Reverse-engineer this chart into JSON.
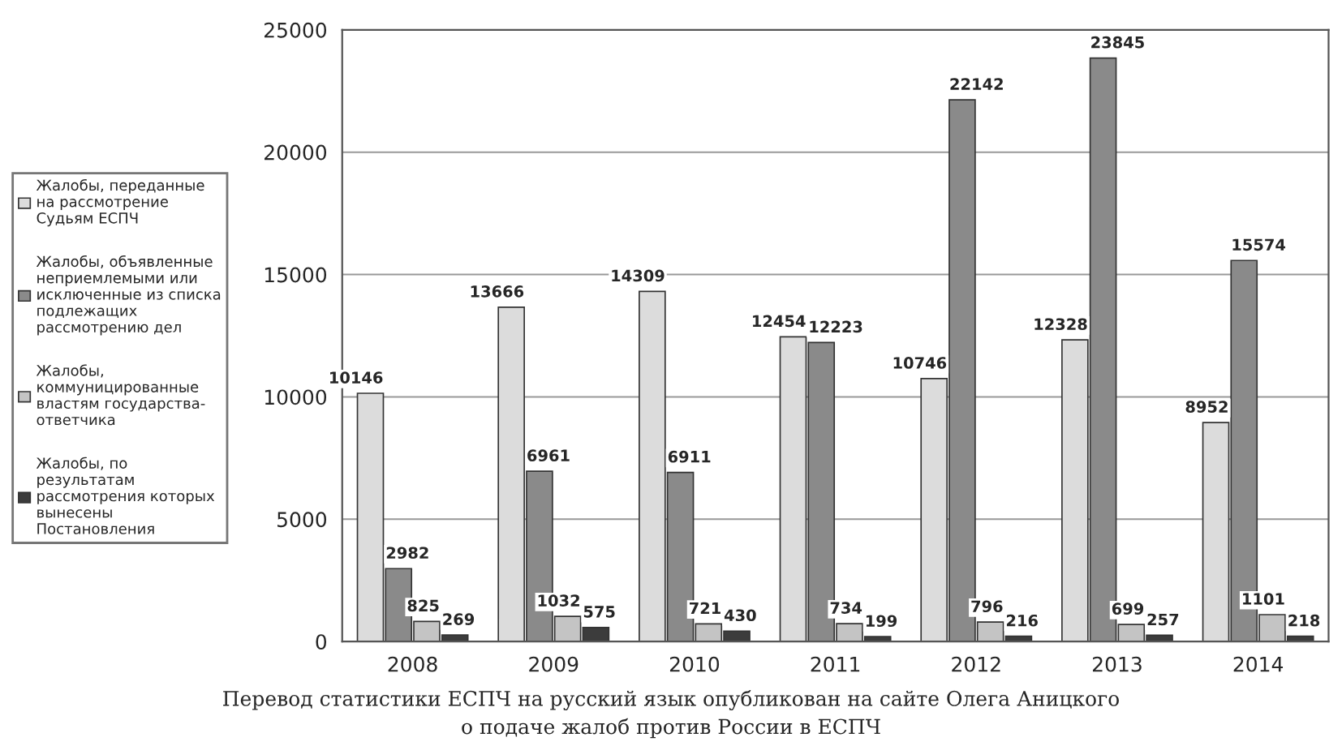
{
  "chart_data": {
    "type": "bar",
    "categories": [
      "2008",
      "2009",
      "2010",
      "2011",
      "2012",
      "2013",
      "2014"
    ],
    "series": [
      {
        "name": "Жалобы, переданные\nна рассмотрение\nСудьям ЕСПЧ",
        "color": "#dcdcdc",
        "values": [
          10146,
          13666,
          14309,
          12454,
          10746,
          12328,
          8952
        ]
      },
      {
        "name": "Жалобы, объявленные\nнеприемлемыми или\nисключенные из списка\nподлежащих\nрассмотрению дел",
        "color": "#8a8a8a",
        "values": [
          2982,
          6961,
          6911,
          12223,
          22142,
          23845,
          15574
        ]
      },
      {
        "name": "Жалобы,\nкоммуницированные\nвластям государства-\nответчика",
        "color": "#c4c4c4",
        "values": [
          825,
          1032,
          721,
          734,
          796,
          699,
          1101
        ]
      },
      {
        "name": "Жалобы, по\nрезультатам\nрассмотрения которых\nвынесены\nПостановления",
        "color": "#3c3c3c",
        "values": [
          269,
          575,
          430,
          199,
          216,
          257,
          218
        ]
      }
    ],
    "ylim": [
      0,
      25000
    ],
    "yticks": [
      0,
      5000,
      10000,
      15000,
      20000,
      25000
    ],
    "grid": "y",
    "legend": "left",
    "data_labels": true,
    "annotations": [
      "Перевод статистики ЕСПЧ на русский язык опубликован на сайте Олега Аницкого\nо подаче жалоб против России в ЕСПЧ"
    ]
  }
}
